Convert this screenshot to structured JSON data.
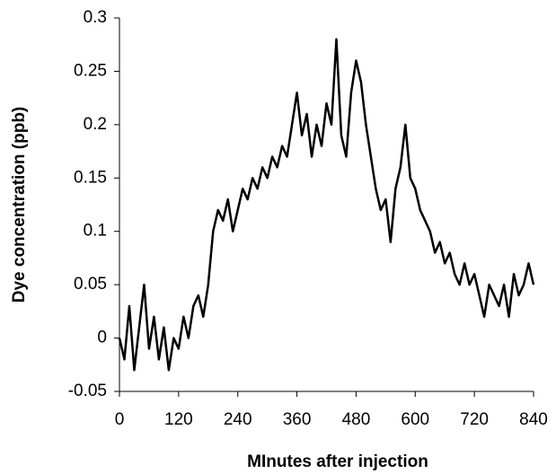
{
  "chart_data": {
    "type": "line",
    "x_label": "MInutes after injection",
    "y_label": "Dye concentration (ppb)",
    "x": [
      0,
      10,
      20,
      30,
      40,
      50,
      60,
      70,
      80,
      90,
      100,
      110,
      120,
      130,
      140,
      150,
      160,
      170,
      180,
      190,
      200,
      210,
      220,
      230,
      240,
      250,
      260,
      270,
      280,
      290,
      300,
      310,
      320,
      330,
      340,
      350,
      360,
      370,
      380,
      390,
      400,
      410,
      420,
      430,
      440,
      450,
      460,
      470,
      480,
      490,
      500,
      510,
      520,
      530,
      540,
      550,
      560,
      570,
      580,
      590,
      600,
      610,
      620,
      630,
      640,
      650,
      660,
      670,
      680,
      690,
      700,
      710,
      720,
      730,
      740,
      750,
      760,
      770,
      780,
      790,
      800,
      810,
      820,
      830,
      840
    ],
    "series": [
      {
        "color": "#000000",
        "values": [
          0.0,
          -0.02,
          0.03,
          -0.03,
          0.01,
          0.05,
          -0.01,
          0.02,
          -0.02,
          0.01,
          -0.03,
          0.0,
          -0.01,
          0.02,
          0.0,
          0.03,
          0.04,
          0.02,
          0.05,
          0.1,
          0.12,
          0.11,
          0.13,
          0.1,
          0.12,
          0.14,
          0.13,
          0.15,
          0.14,
          0.16,
          0.15,
          0.17,
          0.16,
          0.18,
          0.17,
          0.2,
          0.23,
          0.19,
          0.21,
          0.17,
          0.2,
          0.18,
          0.22,
          0.2,
          0.28,
          0.19,
          0.17,
          0.23,
          0.26,
          0.24,
          0.2,
          0.17,
          0.14,
          0.12,
          0.13,
          0.09,
          0.14,
          0.16,
          0.2,
          0.15,
          0.14,
          0.12,
          0.11,
          0.1,
          0.08,
          0.09,
          0.07,
          0.08,
          0.06,
          0.05,
          0.07,
          0.05,
          0.06,
          0.04,
          0.02,
          0.05,
          0.04,
          0.03,
          0.05,
          0.02,
          0.06,
          0.04,
          0.05,
          0.07,
          0.05
        ]
      }
    ],
    "xlim": [
      0,
      840
    ],
    "xticks": [
      0,
      120,
      240,
      360,
      480,
      600,
      720,
      840
    ],
    "ylim": [
      -0.05,
      0.3
    ],
    "yticks": [
      -0.05,
      0,
      0.05,
      0.1,
      0.15,
      0.2,
      0.25,
      0.3
    ]
  }
}
